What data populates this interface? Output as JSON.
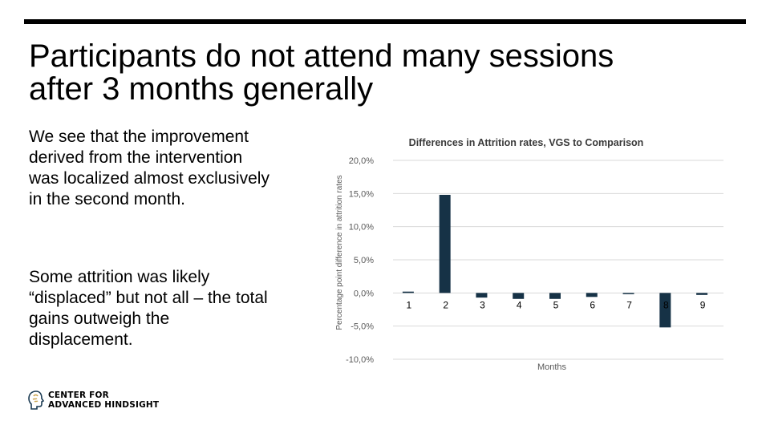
{
  "slide": {
    "title_lines": [
      "Participants do not attend many sessions",
      "after 3 months generally"
    ],
    "paragraph1": "We see that the improvement derived from the intervention was localized almost exclusively in the second month.",
    "paragraph2": "Some attrition was likely “displaced” but not all – the total gains outweigh the displacement."
  },
  "logo": {
    "line1": "CENTER FOR",
    "line2": "ADVANCED HINDSIGHT"
  },
  "colors": {
    "bar": "#163246",
    "grid": "#d9d9d9",
    "text": "#595959",
    "title": "#3a3a3a"
  },
  "chart_data": {
    "type": "bar",
    "title": "Differences in Attrition rates, VGS to Comparison",
    "xlabel": "Months",
    "ylabel": "Percentage point difference in attrition rates",
    "categories": [
      "1",
      "2",
      "3",
      "4",
      "5",
      "6",
      "7",
      "8",
      "9"
    ],
    "values": [
      0.2,
      14.8,
      -0.7,
      -0.9,
      -0.9,
      -0.6,
      -0.1,
      -5.2,
      -0.3
    ],
    "ylim": [
      -10,
      20
    ],
    "yticks": [
      20,
      15,
      10,
      5,
      0,
      -5,
      -10
    ],
    "ytick_labels": [
      "20,0%",
      "15,0%",
      "10,0%",
      "5,0%",
      "0,0%",
      "-5,0%",
      "-10,0%"
    ],
    "grid": true,
    "legend": "none"
  }
}
